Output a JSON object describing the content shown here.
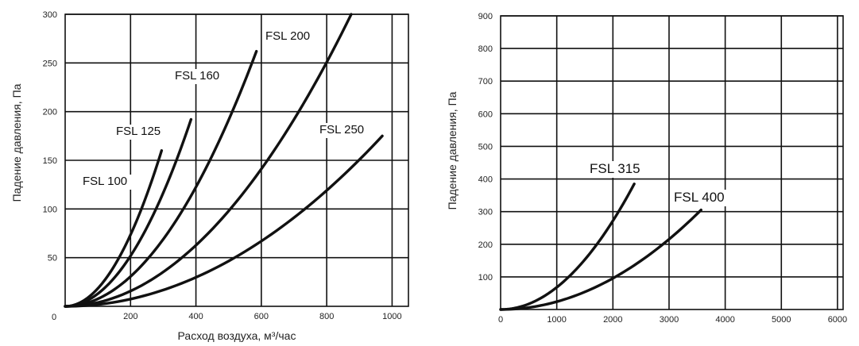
{
  "chart_data": [
    {
      "type": "line",
      "xlabel": "Расход воздуха, м³/час",
      "ylabel": "Падение давления, Па",
      "xlim": [
        0,
        1050
      ],
      "ylim": [
        0,
        300
      ],
      "x_ticks": [
        0,
        200,
        400,
        600,
        800,
        1000
      ],
      "y_ticks": [
        50,
        100,
        150,
        200,
        250,
        300
      ],
      "x_tick_labels": [
        "0",
        "200",
        "400",
        "600",
        "800",
        "1000"
      ],
      "y_tick_labels": [
        "50",
        "100",
        "150",
        "200",
        "250",
        "300"
      ],
      "grid": true,
      "series": [
        {
          "name": "FSL 100",
          "x_max": 295,
          "y_max": 160
        },
        {
          "name": "FSL 125",
          "x_max": 385,
          "y_max": 192
        },
        {
          "name": "FSL 160",
          "x_max": 585,
          "y_max": 262
        },
        {
          "name": "FSL 200",
          "x_max": 875,
          "y_max": 300
        },
        {
          "name": "FSL 250",
          "x_max": 970,
          "y_max": 175
        }
      ]
    },
    {
      "type": "line",
      "xlabel": "",
      "ylabel": "Падение давления, Па",
      "xlim": [
        0,
        6100
      ],
      "ylim": [
        0,
        900
      ],
      "x_ticks": [
        0,
        1000,
        2000,
        3000,
        4000,
        5000,
        6000
      ],
      "y_ticks": [
        100,
        200,
        300,
        400,
        500,
        600,
        700,
        800,
        900
      ],
      "x_tick_labels": [
        "0",
        "1000",
        "2000",
        "3000",
        "4000",
        "5000",
        "6000"
      ],
      "y_tick_labels": [
        "100",
        "200",
        "300",
        "400",
        "500",
        "600",
        "700",
        "800",
        "900"
      ],
      "grid": true,
      "series": [
        {
          "name": "FSL 315",
          "x_max": 2380,
          "y_max": 385
        },
        {
          "name": "FSL 400",
          "x_max": 3570,
          "y_max": 305
        }
      ]
    }
  ]
}
